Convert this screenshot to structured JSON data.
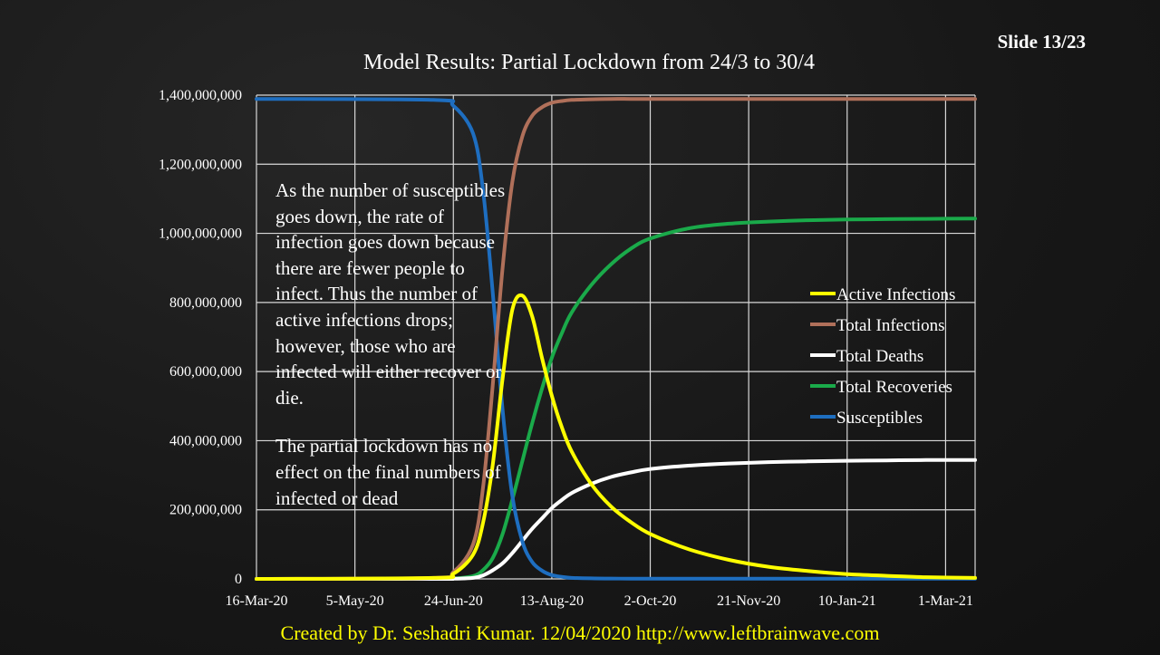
{
  "slide": {
    "number": "Slide 13/23"
  },
  "footer": {
    "text": "Created by Dr. Seshadri Kumar. 12/04/2020 http://www.leftbrainwave.com"
  },
  "annotation": {
    "paragraph1": "As the number of susceptibles goes down, the rate of infection goes down because there are fewer people to infect. Thus the number of active infections drops; however, those who are infected will either recover or die.",
    "paragraph2": "The partial lockdown has no effect on the final numbers of infected or dead"
  },
  "chart_data": {
    "type": "line",
    "title": "Model Results: Partial Lockdown from 24/3 to 30/4",
    "xlabel": "",
    "ylabel": "",
    "ylim": [
      0,
      1400000000
    ],
    "y_ticks": [
      0,
      200000000,
      400000000,
      600000000,
      800000000,
      1000000000,
      1200000000,
      1400000000
    ],
    "y_tick_labels": [
      "0",
      "200,000,000",
      "400,000,000",
      "600,000,000",
      "800,000,000",
      "1,000,000,000",
      "1,200,000,000",
      "1,400,000,000"
    ],
    "x_tick_labels": [
      "16-Mar-20",
      "5-May-20",
      "24-Jun-20",
      "13-Aug-20",
      "2-Oct-20",
      "21-Nov-20",
      "10-Jan-21",
      "1-Mar-21"
    ],
    "xlim_days": [
      0,
      365
    ],
    "grid": true,
    "legend_position": "right",
    "x": [
      0,
      90,
      100,
      110,
      115,
      120,
      125,
      130,
      135,
      140,
      145,
      150,
      155,
      160,
      170,
      180,
      190,
      200,
      220,
      240,
      260,
      280,
      300,
      320,
      340,
      365
    ],
    "series": [
      {
        "name": "Active Infections",
        "color": "#ffff00",
        "values": [
          0,
          3000000,
          15000000,
          70000000,
          160000000,
          330000000,
          580000000,
          780000000,
          820000000,
          760000000,
          640000000,
          530000000,
          440000000,
          370000000,
          275000000,
          210000000,
          165000000,
          130000000,
          85000000,
          55000000,
          35000000,
          23000000,
          14000000,
          9000000,
          5000000,
          3000000
        ]
      },
      {
        "name": "Total Infections",
        "color": "#b0705a",
        "values": [
          0,
          3000000,
          20000000,
          100000000,
          260000000,
          560000000,
          900000000,
          1150000000,
          1280000000,
          1340000000,
          1365000000,
          1378000000,
          1383000000,
          1386000000,
          1388000000,
          1389000000,
          1389000000,
          1389000000,
          1389000000,
          1389000000,
          1389000000,
          1389000000,
          1389000000,
          1389000000,
          1389000000,
          1389000000
        ]
      },
      {
        "name": "Total Deaths",
        "color": "#ffffff",
        "values": [
          0,
          0,
          500000,
          3000000,
          10000000,
          25000000,
          45000000,
          75000000,
          110000000,
          145000000,
          175000000,
          205000000,
          228000000,
          248000000,
          275000000,
          295000000,
          308000000,
          318000000,
          328000000,
          334000000,
          338000000,
          340000000,
          342000000,
          343000000,
          344000000,
          344000000
        ]
      },
      {
        "name": "Total Recoveries",
        "color": "#1aaa4a",
        "values": [
          0,
          0,
          1000000,
          8000000,
          25000000,
          60000000,
          130000000,
          230000000,
          340000000,
          450000000,
          550000000,
          640000000,
          710000000,
          770000000,
          850000000,
          910000000,
          955000000,
          985000000,
          1015000000,
          1028000000,
          1034000000,
          1038000000,
          1040000000,
          1041000000,
          1042000000,
          1043000000
        ]
      },
      {
        "name": "Susceptibles",
        "color": "#1e6ec0",
        "values": [
          1389000000,
          1386000000,
          1369000000,
          1289000000,
          1129000000,
          829000000,
          489000000,
          239000000,
          109000000,
          49000000,
          24000000,
          11000000,
          6000000,
          3000000,
          1500000,
          1000000,
          800000,
          700000,
          600000,
          600000,
          600000,
          600000,
          600000,
          600000,
          600000,
          600000
        ]
      }
    ]
  }
}
